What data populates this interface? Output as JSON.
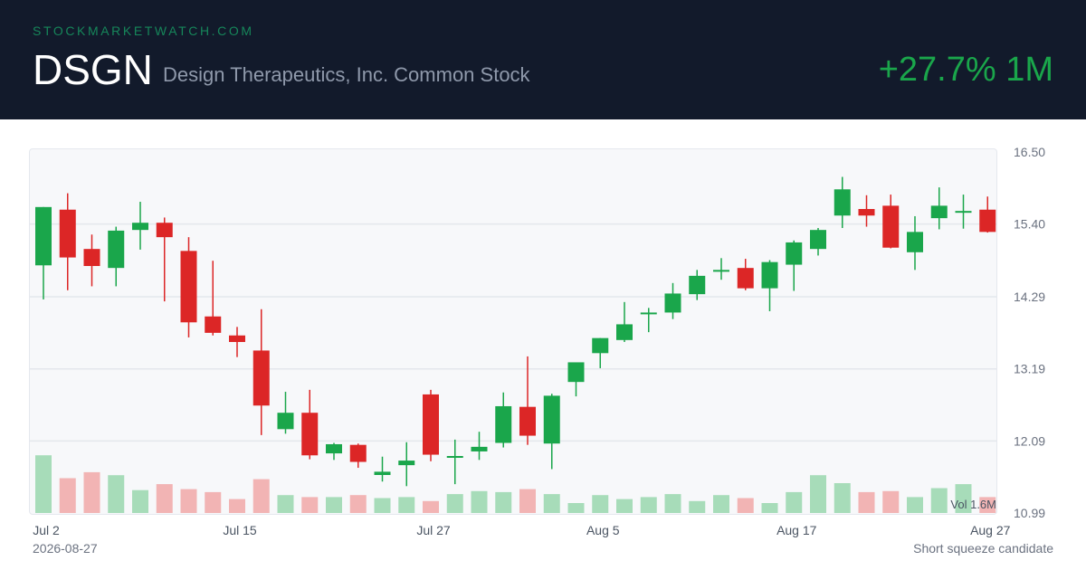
{
  "header": {
    "site": "STOCKMARKETWATCH.COM",
    "ticker": "DSGN",
    "company": "Design Therapeutics, Inc. Common Stock",
    "change": "+27.7% 1M"
  },
  "footer": {
    "date": "2026-08-27",
    "note": "Short squeeze candidate"
  },
  "colors": {
    "up": "#1aa64b",
    "down": "#dc2626",
    "header_bg": "#121a2b"
  },
  "chart_data": {
    "type": "candlestick",
    "y_ticks": [
      "16.50",
      "15.40",
      "14.29",
      "13.19",
      "12.09",
      "10.99"
    ],
    "ylim": [
      10.99,
      16.5
    ],
    "x_tick_labels": [
      {
        "index": 0,
        "label": "Jul 2"
      },
      {
        "index": 8,
        "label": "Jul 15"
      },
      {
        "index": 16,
        "label": "Jul 27"
      },
      {
        "index": 23,
        "label": "Aug 5"
      },
      {
        "index": 31,
        "label": "Aug 17"
      },
      {
        "index": 39,
        "label": "Aug 27"
      }
    ],
    "volume_label": "Vol 1.6M",
    "candles": [
      {
        "o": 14.77,
        "h": 15.66,
        "l": 14.25,
        "c": 15.66,
        "v": 0.58
      },
      {
        "o": 15.62,
        "h": 15.87,
        "l": 14.39,
        "c": 14.89,
        "v": 0.35
      },
      {
        "o": 15.02,
        "h": 15.24,
        "l": 14.45,
        "c": 14.76,
        "v": 0.41
      },
      {
        "o": 14.73,
        "h": 15.36,
        "l": 14.45,
        "c": 15.3,
        "v": 0.38
      },
      {
        "o": 15.31,
        "h": 15.74,
        "l": 15.01,
        "c": 15.42,
        "v": 0.23
      },
      {
        "o": 15.42,
        "h": 15.5,
        "l": 14.22,
        "c": 15.2,
        "v": 0.29
      },
      {
        "o": 14.99,
        "h": 15.2,
        "l": 13.67,
        "c": 13.9,
        "v": 0.24
      },
      {
        "o": 13.99,
        "h": 14.84,
        "l": 13.7,
        "c": 13.74,
        "v": 0.21
      },
      {
        "o": 13.7,
        "h": 13.83,
        "l": 13.37,
        "c": 13.6,
        "v": 0.14
      },
      {
        "o": 13.47,
        "h": 14.1,
        "l": 12.18,
        "c": 12.63,
        "v": 0.34
      },
      {
        "o": 12.27,
        "h": 12.84,
        "l": 12.2,
        "c": 12.52,
        "v": 0.18
      },
      {
        "o": 12.52,
        "h": 12.87,
        "l": 11.81,
        "c": 11.87,
        "v": 0.16
      },
      {
        "o": 11.9,
        "h": 12.06,
        "l": 11.8,
        "c": 12.04,
        "v": 0.16
      },
      {
        "o": 12.03,
        "h": 12.05,
        "l": 11.68,
        "c": 11.77,
        "v": 0.18
      },
      {
        "o": 11.57,
        "h": 11.85,
        "l": 11.47,
        "c": 11.62,
        "v": 0.15
      },
      {
        "o": 11.72,
        "h": 12.07,
        "l": 11.4,
        "c": 11.79,
        "v": 0.16
      },
      {
        "o": 12.8,
        "h": 12.87,
        "l": 11.78,
        "c": 11.88,
        "v": 0.12
      },
      {
        "o": 11.86,
        "h": 12.11,
        "l": 11.43,
        "c": 11.86,
        "v": 0.19
      },
      {
        "o": 11.93,
        "h": 12.23,
        "l": 11.8,
        "c": 12.0,
        "v": 0.22
      },
      {
        "o": 12.06,
        "h": 12.83,
        "l": 11.99,
        "c": 12.62,
        "v": 0.21
      },
      {
        "o": 12.61,
        "h": 13.38,
        "l": 12.03,
        "c": 12.17,
        "v": 0.24
      },
      {
        "o": 12.05,
        "h": 12.81,
        "l": 11.66,
        "c": 12.78,
        "v": 0.19
      },
      {
        "o": 12.99,
        "h": 13.28,
        "l": 12.77,
        "c": 13.29,
        "v": 0.1
      },
      {
        "o": 13.43,
        "h": 13.66,
        "l": 13.2,
        "c": 13.66,
        "v": 0.18
      },
      {
        "o": 13.63,
        "h": 14.21,
        "l": 13.6,
        "c": 13.87,
        "v": 0.14
      },
      {
        "o": 14.03,
        "h": 14.12,
        "l": 13.75,
        "c": 14.05,
        "v": 0.16
      },
      {
        "o": 14.05,
        "h": 14.5,
        "l": 13.95,
        "c": 14.34,
        "v": 0.19
      },
      {
        "o": 14.33,
        "h": 14.7,
        "l": 14.24,
        "c": 14.61,
        "v": 0.12
      },
      {
        "o": 14.69,
        "h": 14.88,
        "l": 14.55,
        "c": 14.7,
        "v": 0.18
      },
      {
        "o": 14.73,
        "h": 14.87,
        "l": 14.39,
        "c": 14.42,
        "v": 0.15
      },
      {
        "o": 14.42,
        "h": 14.85,
        "l": 14.07,
        "c": 14.82,
        "v": 0.1
      },
      {
        "o": 14.78,
        "h": 15.15,
        "l": 14.38,
        "c": 15.12,
        "v": 0.21
      },
      {
        "o": 15.02,
        "h": 15.34,
        "l": 14.92,
        "c": 15.31,
        "v": 0.38
      },
      {
        "o": 15.53,
        "h": 16.12,
        "l": 15.34,
        "c": 15.93,
        "v": 0.3
      },
      {
        "o": 15.63,
        "h": 15.84,
        "l": 15.36,
        "c": 15.53,
        "v": 0.21
      },
      {
        "o": 15.68,
        "h": 15.85,
        "l": 15.03,
        "c": 15.04,
        "v": 0.22
      },
      {
        "o": 14.97,
        "h": 15.52,
        "l": 14.7,
        "c": 15.28,
        "v": 0.16
      },
      {
        "o": 15.49,
        "h": 15.96,
        "l": 15.32,
        "c": 15.68,
        "v": 0.25
      },
      {
        "o": 15.6,
        "h": 15.85,
        "l": 15.33,
        "c": 15.6,
        "v": 0.29
      },
      {
        "o": 15.62,
        "h": 15.82,
        "l": 15.27,
        "c": 15.28,
        "v": 0.16
      }
    ]
  }
}
